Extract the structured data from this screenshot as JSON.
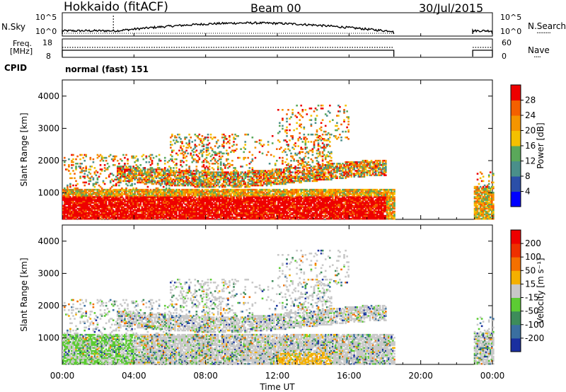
{
  "header": {
    "station": "Hokkaido (fitACF)",
    "beam": "Beam 00",
    "date": "30/Jul/2015"
  },
  "nsky_panel": {
    "left_label": "N.Sky",
    "left_ticks": [
      "10^5",
      "10^0"
    ],
    "right_ticks": [
      "10^5",
      "10^0"
    ],
    "right_label": "N.Search",
    "right_line": "........"
  },
  "freq_panel": {
    "left_label_1": "Freq.",
    "left_label_2": "[MHz]",
    "left_ticks": [
      "18",
      "8"
    ],
    "right_ticks": [
      "60",
      "0"
    ],
    "right_label": "Nave",
    "right_line": "...."
  },
  "cpid": {
    "label": "CPID",
    "program": "normal (fast) 151"
  },
  "chart_data": [
    {
      "type": "heatmap",
      "title": "",
      "ylabel": "Slant Range [km]",
      "xlabel": "",
      "x_ticks": [
        "00:00",
        "04:00",
        "08:00",
        "12:00",
        "16:00",
        "20:00",
        "00:00"
      ],
      "y_ticks": [
        "1000",
        "2000",
        "3000",
        "4000"
      ],
      "ylim": [
        180,
        4500
      ],
      "xlim_hours": [
        0,
        24
      ],
      "colorbar": {
        "label": "Power [dB]",
        "ticks": [
          "4",
          "8",
          "12",
          "16",
          "20",
          "24",
          "28"
        ],
        "colors": [
          "#0000ff",
          "#2b4fa8",
          "#4a8f8a",
          "#5aa85a",
          "#f4c000",
          "#f59500",
          "#f46000",
          "#ee0000"
        ]
      },
      "data_coverage_hours": [
        [
          0,
          18.5
        ],
        [
          22.9,
          24
        ]
      ]
    },
    {
      "type": "heatmap",
      "title": "",
      "ylabel": "Slant Range [km]",
      "xlabel": "Time UT",
      "x_ticks": [
        "00:00",
        "04:00",
        "08:00",
        "12:00",
        "16:00",
        "20:00",
        "00:00"
      ],
      "y_ticks": [
        "1000",
        "2000",
        "3000",
        "4000"
      ],
      "ylim": [
        180,
        4500
      ],
      "xlim_hours": [
        0,
        24
      ],
      "colorbar": {
        "label": "Velocity [m s⁻¹]",
        "ticks": [
          "200",
          "100",
          "50",
          "15",
          "-15",
          "-50",
          "-100",
          "-200"
        ],
        "colors": [
          "#1a2fa0",
          "#3a6fa0",
          "#3d8c5a",
          "#5ccc33",
          "#c8c8c8",
          "#f4b000",
          "#f47000",
          "#ee3000",
          "#ee0000"
        ]
      },
      "data_coverage_hours": [
        [
          0,
          18.5
        ],
        [
          22.9,
          24
        ]
      ]
    }
  ]
}
